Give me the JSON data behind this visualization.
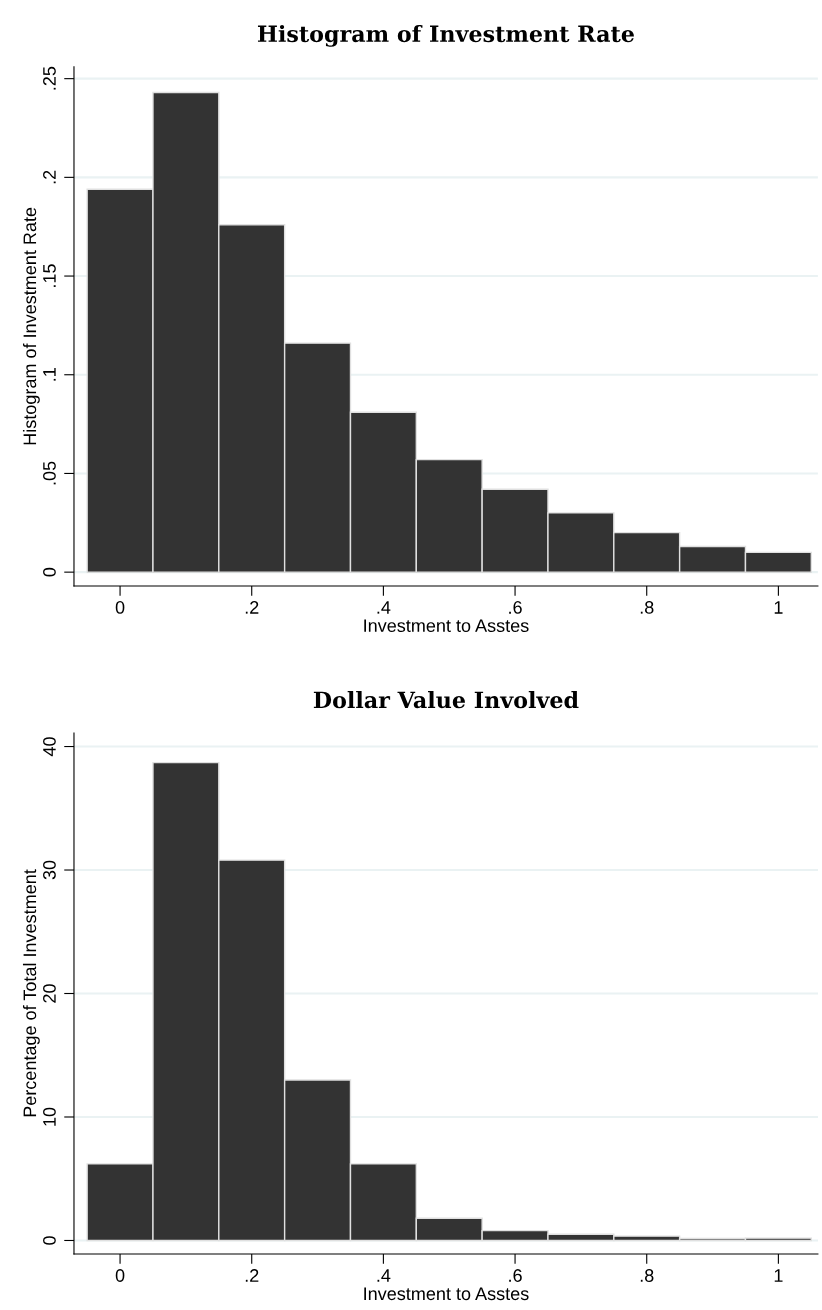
{
  "chart_data": [
    {
      "type": "histogram",
      "title": "Histogram of Investment Rate",
      "xlabel": "Investment to Asstes",
      "ylabel": "Histogram of Investment Rate",
      "bins": [
        -0.05,
        0.05,
        0.15,
        0.25,
        0.35,
        0.45,
        0.55,
        0.65,
        0.75,
        0.85,
        0.95,
        1.05
      ],
      "values": [
        0.194,
        0.243,
        0.176,
        0.116,
        0.081,
        0.057,
        0.042,
        0.03,
        0.02,
        0.013,
        0.01
      ],
      "color": "#333333",
      "xlim": [
        -0.07,
        1.06
      ],
      "xticks": [
        0,
        {
          "value": 0.2,
          "label": ".2"
        },
        {
          "value": 0.4,
          "label": ".4"
        },
        {
          "value": 0.6,
          "label": ".6"
        },
        {
          "value": 0.8,
          "label": ".8"
        },
        1
      ],
      "ylim": [
        -0.007,
        0.256
      ],
      "yticks": [
        0,
        {
          "value": 0.05,
          "label": ".05"
        },
        {
          "value": 0.1,
          "label": ".1"
        },
        {
          "value": 0.15,
          "label": ".15"
        },
        {
          "value": 0.2,
          "label": ".2"
        },
        {
          "value": 0.25,
          "label": ".25"
        }
      ],
      "grid": "y"
    },
    {
      "type": "histogram",
      "title": "Dollar Value Involved",
      "xlabel": "Investment to Asstes",
      "ylabel": "Percentage of Total Investment",
      "bins": [
        -0.05,
        0.05,
        0.15,
        0.25,
        0.35,
        0.45,
        0.55,
        0.65,
        0.75,
        0.85,
        0.95,
        1.05
      ],
      "values": [
        6.2,
        38.7,
        30.8,
        13.0,
        6.2,
        1.8,
        0.8,
        0.5,
        0.35,
        0.16,
        0.19
      ],
      "color": "#333333",
      "xlim": [
        -0.07,
        1.06
      ],
      "xticks": [
        0,
        {
          "value": 0.2,
          "label": ".2"
        },
        {
          "value": 0.4,
          "label": ".4"
        },
        {
          "value": 0.6,
          "label": ".6"
        },
        {
          "value": 0.8,
          "label": ".8"
        },
        1
      ],
      "ylim": [
        -1.1,
        41.1
      ],
      "yticks": [
        0,
        10,
        20,
        30,
        40
      ],
      "grid": "y"
    }
  ]
}
